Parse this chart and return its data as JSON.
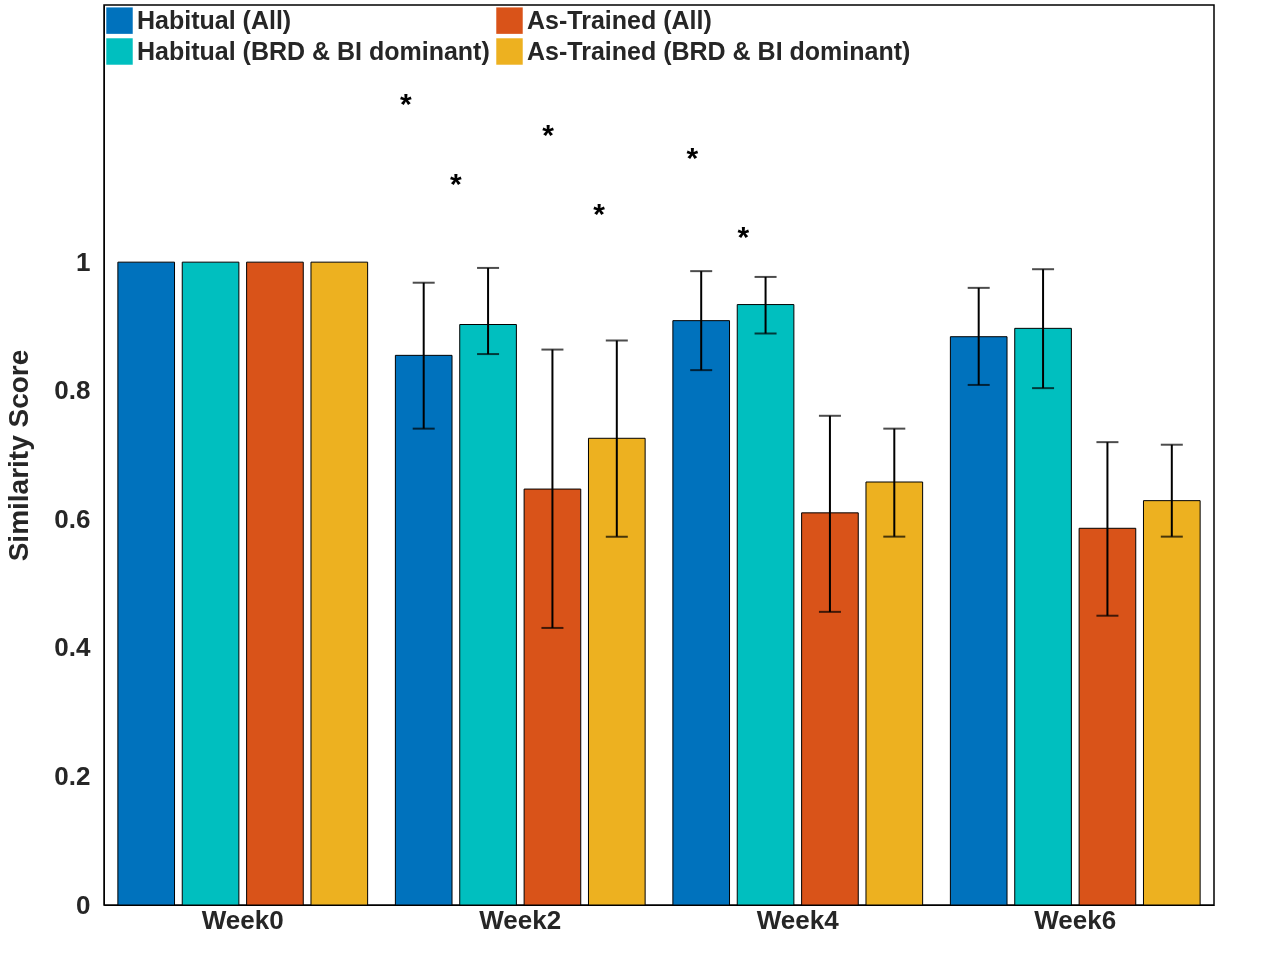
{
  "chart_data": {
    "type": "bar",
    "ylabel": "Similarity Score",
    "categories": [
      "Week0",
      "Week2",
      "Week4",
      "Week6"
    ],
    "series": [
      {
        "name": "Habitual (All)",
        "color": "#0072bd",
        "values": [
          1,
          0.855,
          0.909,
          0.884
        ],
        "errors": [
          null,
          [
            0.741,
            0.968
          ],
          [
            0.832,
            0.986
          ],
          [
            0.809,
            0.96
          ]
        ]
      },
      {
        "name": "Habitual (BRD & BI dominant)",
        "color": "#00bfbf",
        "values": [
          1,
          0.903,
          0.934,
          0.897
        ],
        "errors": [
          null,
          [
            0.857,
            0.991
          ],
          [
            0.889,
            0.977
          ],
          [
            0.804,
            0.989
          ]
        ]
      },
      {
        "name": "As-Trained (All)",
        "color": "#d95319",
        "values": [
          1,
          0.647,
          0.61,
          0.586
        ],
        "errors": [
          null,
          [
            0.431,
            0.864
          ],
          [
            0.456,
            0.761
          ],
          [
            0.45,
            0.72
          ]
        ]
      },
      {
        "name": "As-Trained (BRD & BI dominant)",
        "color": "#edb120",
        "values": [
          1,
          0.726,
          0.658,
          0.629
        ],
        "errors": [
          null,
          [
            0.573,
            0.878
          ],
          [
            0.573,
            0.741
          ],
          [
            0.573,
            0.716
          ]
        ]
      }
    ],
    "ylim": [
      0,
      1.4
    ],
    "yticks": [
      0,
      0.2,
      0.4,
      0.6,
      0.8,
      1
    ],
    "grid": false,
    "legend": "top left",
    "annotations": [
      "*",
      "*",
      "*",
      "*",
      "*",
      "*"
    ]
  }
}
